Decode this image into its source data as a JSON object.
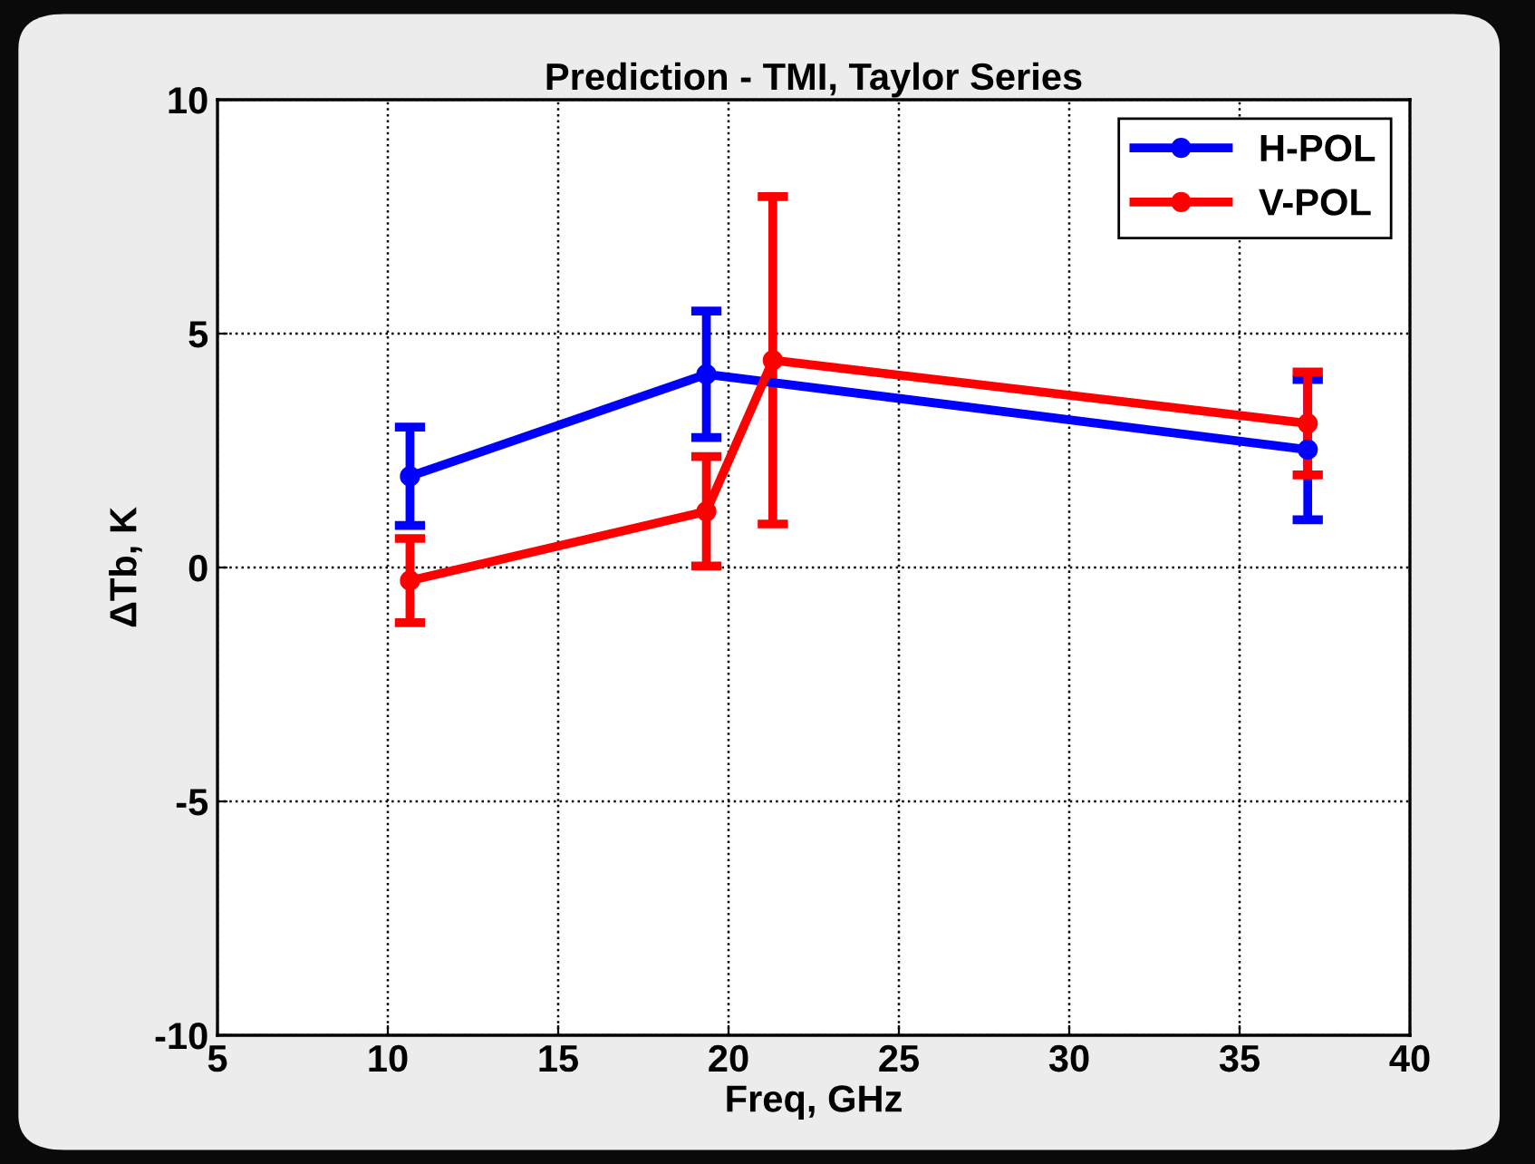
{
  "chart_data": {
    "type": "line",
    "title": "Prediction - TMI, Taylor Series",
    "xlabel": "Freq, GHz",
    "ylabel": "ΔTb, K",
    "series": [
      {
        "name": "H-POL",
        "color": "#0000ff",
        "x": [
          10.65,
          19.35,
          37
        ],
        "values": [
          1.95,
          4.13,
          2.52
        ],
        "errors": [
          1.05,
          1.35,
          1.5
        ]
      },
      {
        "name": "V-POL",
        "color": "#ff0000",
        "x": [
          10.65,
          19.35,
          21.3,
          37
        ],
        "values": [
          -0.28,
          1.2,
          4.43,
          3.08
        ],
        "errors": [
          0.9,
          1.17,
          3.5,
          1.1
        ]
      }
    ],
    "xlim": [
      5,
      40
    ],
    "xticks": [
      5,
      10,
      15,
      20,
      25,
      30,
      35,
      40
    ],
    "ylim": [
      -10,
      10
    ],
    "yticks": [
      -10,
      -5,
      0,
      5,
      10
    ],
    "grid": true,
    "legend": "top right",
    "marker": "circle",
    "line_style": "solid"
  }
}
